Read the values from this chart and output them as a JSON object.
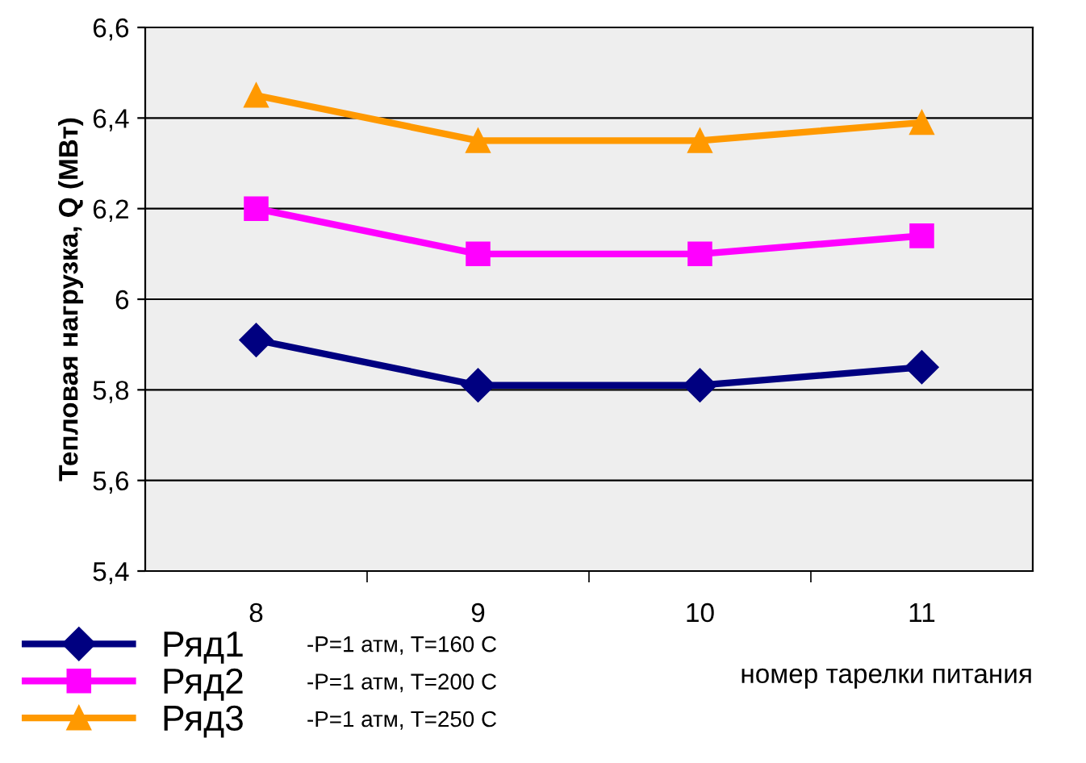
{
  "chart_data": {
    "type": "line",
    "ylabel": "Тепловая нагрузка, Q (МВт)",
    "xlabel": "номер тарелки питания",
    "categories": [
      "8",
      "9",
      "10",
      "11"
    ],
    "series": [
      {
        "name": "Ряд1",
        "color": "#000080",
        "marker": "diamond",
        "values": [
          5.91,
          5.81,
          5.81,
          5.85
        ]
      },
      {
        "name": "Ряд2",
        "color": "#ff00ff",
        "marker": "square",
        "values": [
          6.2,
          6.1,
          6.1,
          6.14
        ]
      },
      {
        "name": "Ряд3",
        "color": "#ff9900",
        "marker": "triangle",
        "values": [
          6.45,
          6.35,
          6.35,
          6.39
        ]
      }
    ],
    "annotations": [
      "-P=1 атм, T=160 C",
      "-P=1 атм, T=200 C",
      "-P=1 атм, T=250 C"
    ],
    "ylim": [
      5.4,
      6.6
    ],
    "yticks": [
      {
        "value": 5.4,
        "label": "5,4"
      },
      {
        "value": 5.6,
        "label": "5,6"
      },
      {
        "value": 5.8,
        "label": "5,8"
      },
      {
        "value": 6,
        "label": "6"
      },
      {
        "value": 6.2,
        "label": "6,2"
      },
      {
        "value": 6.4,
        "label": "6,4"
      },
      {
        "value": 6.6,
        "label": "6,6"
      }
    ],
    "grid": "y",
    "legend": "bottom left",
    "line_style": "solid"
  }
}
